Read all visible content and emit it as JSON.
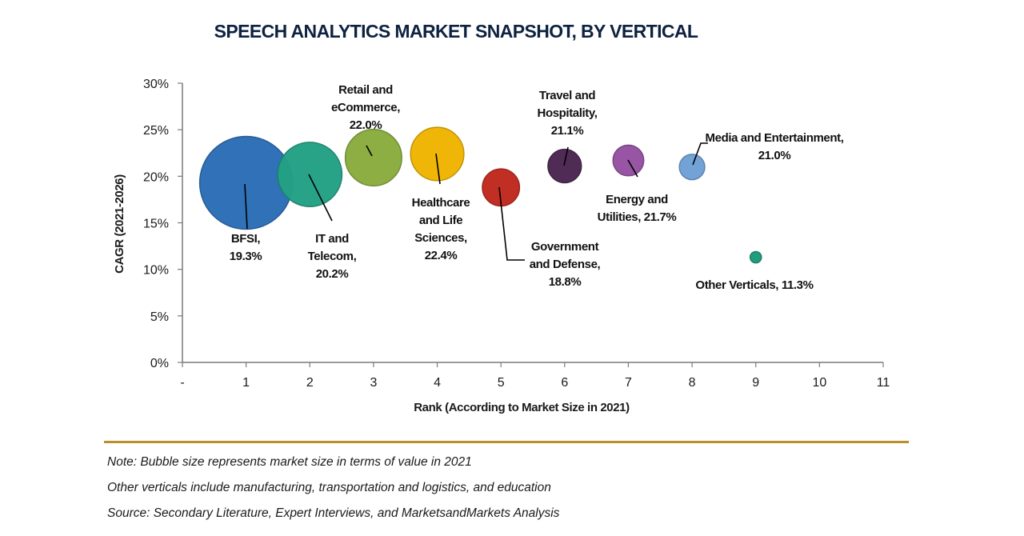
{
  "chart_data": {
    "type": "scatter",
    "subtype": "bubble",
    "title": "SPEECH ANALYTICS MARKET SNAPSHOT, BY VERTICAL",
    "xlabel": "Rank (According to Market Size in 2021)",
    "ylabel": "CAGR (2021-2026)",
    "xlim": [
      0,
      11
    ],
    "ylim": [
      0,
      30
    ],
    "x_ticks": [
      "-",
      "1",
      "2",
      "3",
      "4",
      "5",
      "6",
      "7",
      "8",
      "9",
      "10",
      "11"
    ],
    "y_ticks": [
      "0%",
      "5%",
      "10%",
      "15%",
      "20%",
      "25%",
      "30%"
    ],
    "grid": false,
    "points": [
      {
        "name": "BFSI",
        "x": 1,
        "y": 19.3,
        "size": 1.0,
        "color": "#2a6db5",
        "label_lines": [
          "BFSI,",
          "19.3%"
        ]
      },
      {
        "name": "IT and Telecom",
        "x": 2,
        "y": 20.2,
        "size": 0.48,
        "color": "#23a185",
        "label_lines": [
          "IT and",
          "Telecom,",
          "20.2%"
        ]
      },
      {
        "name": "Retail and eCommerce",
        "x": 3,
        "y": 22.0,
        "size": 0.37,
        "color": "#8aac3c",
        "label_lines": [
          "Retail and",
          "eCommerce,",
          "22.0%"
        ]
      },
      {
        "name": "Healthcare and Life Sciences",
        "x": 4,
        "y": 22.4,
        "size": 0.33,
        "color": "#f0b400",
        "label_lines": [
          "Healthcare",
          "and Life",
          "Sciences,",
          "22.4%"
        ]
      },
      {
        "name": "Government and Defense",
        "x": 5,
        "y": 18.8,
        "size": 0.16,
        "color": "#c0281c",
        "label_lines": [
          "Government",
          "and Defense,",
          "18.8%"
        ]
      },
      {
        "name": "Travel and Hospitality",
        "x": 6,
        "y": 21.1,
        "size": 0.13,
        "color": "#4a2550",
        "label_lines": [
          "Travel and",
          "Hospitality,",
          "21.1%"
        ]
      },
      {
        "name": "Energy and Utilities",
        "x": 7,
        "y": 21.7,
        "size": 0.11,
        "color": "#9450a2",
        "label_lines": [
          "Energy and",
          "Utilities, 21.7%"
        ]
      },
      {
        "name": "Media and Entertainment",
        "x": 8,
        "y": 21.0,
        "size": 0.075,
        "color": "#6fa0d6",
        "label_lines": [
          "Media and Entertainment,",
          "21.0%"
        ]
      },
      {
        "name": "Other Verticals",
        "x": 9,
        "y": 11.3,
        "size": 0.015,
        "color": "#1a9a7a",
        "label_lines": [
          "Other Verticals, 11.3%"
        ]
      }
    ]
  },
  "footer": {
    "notes": [
      "Note: Bubble size represents market size in terms of value in 2021",
      "Other verticals include manufacturing, transportation and logistics, and education",
      "Source: Secondary Literature, Expert Interviews, and MarketsandMarkets Analysis"
    ],
    "separator_color": "#b8902a"
  }
}
